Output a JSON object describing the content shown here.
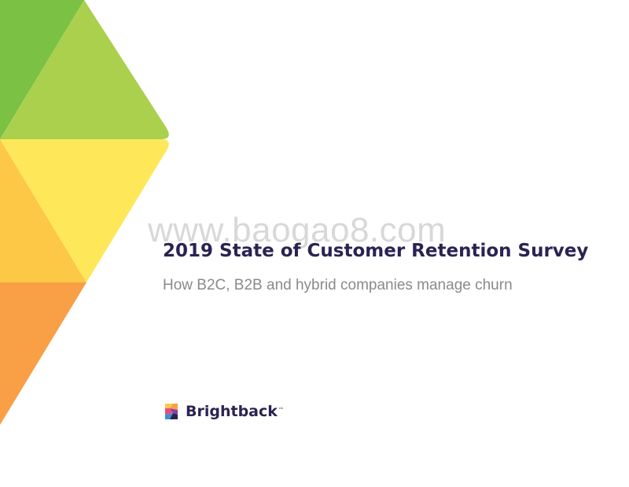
{
  "watermark": "www.baogao8.com",
  "title": "2019 State of Customer Retention Survey",
  "subtitle": "How B2C, B2B and hybrid companies manage churn",
  "brand": {
    "name": "Brightback",
    "trademark": "™"
  },
  "colors": {
    "title": "#2a2352",
    "subtitle": "#8a8a8a",
    "green_dark": "#7bc143",
    "green_light": "#aad04e",
    "yellow": "#fee85a",
    "yellow_orange": "#fcc846",
    "orange": "#f99f46"
  }
}
